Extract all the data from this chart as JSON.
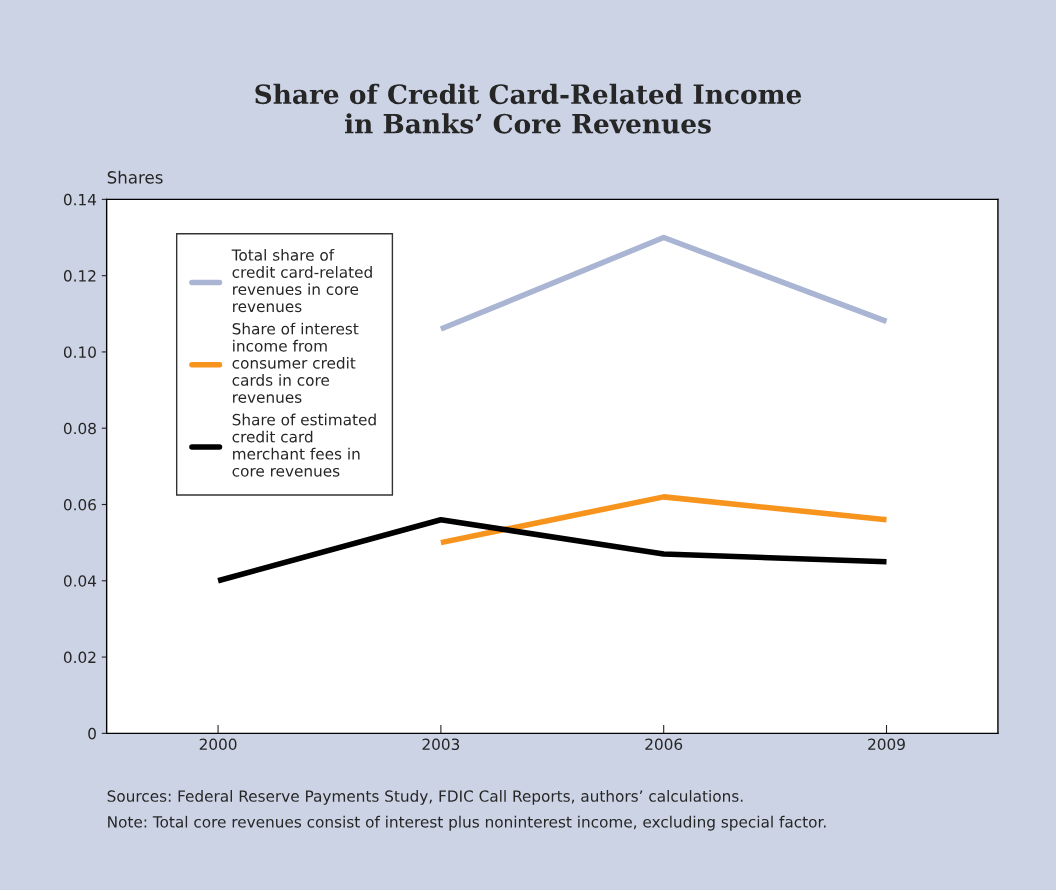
{
  "chart_data": {
    "type": "line",
    "title": "Share of Credit Card-Related Income\nin Banks’ Core Revenues",
    "ylabel": "Shares",
    "categories": [
      "2000",
      "2003",
      "2006",
      "2009"
    ],
    "series": [
      {
        "name": "Total share of\ncredit card-related\nrevenues in core\nrevenues",
        "color": "#a9b5d3",
        "values": [
          null,
          0.106,
          0.13,
          0.108
        ]
      },
      {
        "name": "Share of interest\nincome from\nconsumer credit\ncards in core\nrevenues",
        "color": "#f7941d",
        "values": [
          null,
          0.05,
          0.062,
          0.056
        ]
      },
      {
        "name": "Share of estimated\ncredit card\nmerchant fees in\ncore revenues",
        "color": "#000000",
        "values": [
          0.04,
          0.056,
          0.047,
          0.045
        ]
      }
    ],
    "ylim": [
      0,
      0.14
    ],
    "yticks": [
      {
        "value": 0,
        "label": "0"
      },
      {
        "value": 0.02,
        "label": "0.02"
      },
      {
        "value": 0.04,
        "label": "0.04"
      },
      {
        "value": 0.06,
        "label": "0.06"
      },
      {
        "value": 0.08,
        "label": "0.08"
      },
      {
        "value": 0.1,
        "label": "0.10"
      },
      {
        "value": 0.12,
        "label": "0.12"
      },
      {
        "value": 0.14,
        "label": "0.14"
      }
    ],
    "grid": false,
    "legend": "top left",
    "marker": "none",
    "line_style": "solid",
    "annotations": [
      "Sources: Federal Reserve Payments Study, FDIC Call Reports, authors’ calculations.",
      "Note: Total core revenues consist of interest plus noninterest income, excluding special factor."
    ]
  }
}
